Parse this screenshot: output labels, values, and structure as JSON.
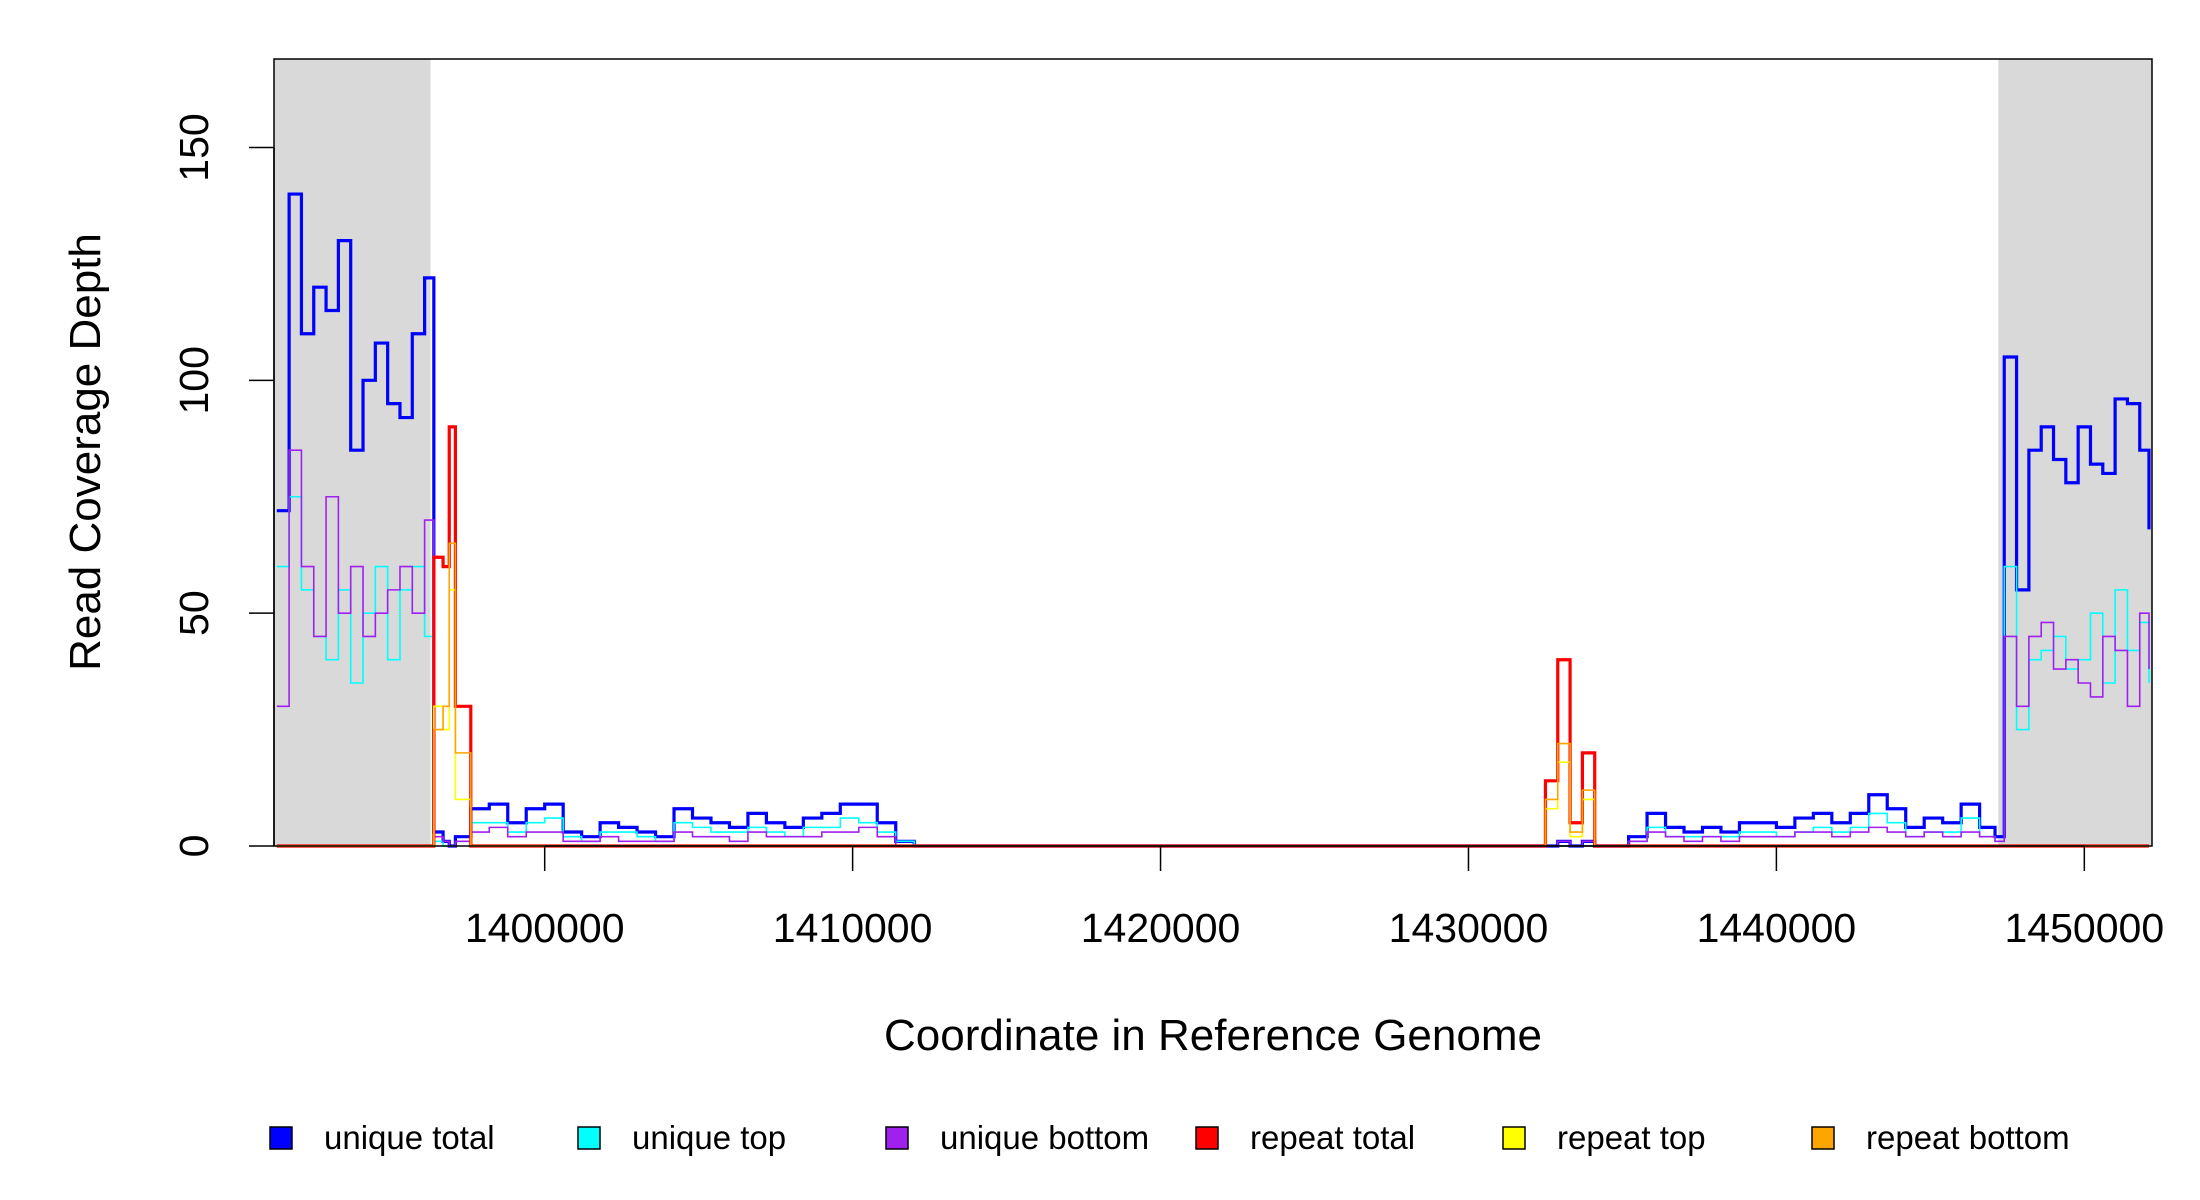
{
  "chart_data": {
    "type": "step",
    "y_label": "Read Coverage Depth",
    "x_label": "Coordinate in Reference Genome",
    "xlim": [
      1391209,
      1452198
    ],
    "ylim": [
      0,
      169
    ],
    "xticks": [
      1400000,
      1410000,
      1420000,
      1430000,
      1440000,
      1450000
    ],
    "yticks": [
      0,
      50,
      100,
      150
    ],
    "shaded_regions": [
      [
        1391209,
        1396291
      ],
      [
        1447207,
        1452198
      ]
    ],
    "shade_color": "#d9d9d9",
    "legend": "bottom",
    "x": [
      1391300,
      1391700,
      1392100,
      1392500,
      1392900,
      1393300,
      1393700,
      1394100,
      1394500,
      1394900,
      1395300,
      1395700,
      1396100,
      1396400,
      1396700,
      1396900,
      1397100,
      1397600,
      1398200,
      1398800,
      1399400,
      1400000,
      1400600,
      1401200,
      1401800,
      1402400,
      1403000,
      1403600,
      1404200,
      1404800,
      1405400,
      1406000,
      1406600,
      1407200,
      1407800,
      1408400,
      1409000,
      1409600,
      1410200,
      1410800,
      1411400,
      1412000,
      1413000,
      1432000,
      1432500,
      1432900,
      1433300,
      1433700,
      1434100,
      1434600,
      1435200,
      1435800,
      1436400,
      1437000,
      1437600,
      1438200,
      1438800,
      1439400,
      1440000,
      1440600,
      1441200,
      1441800,
      1442400,
      1443000,
      1443600,
      1444200,
      1444800,
      1445400,
      1446000,
      1446600,
      1447100,
      1447400,
      1447800,
      1448200,
      1448600,
      1449000,
      1449400,
      1449800,
      1450200,
      1450600,
      1451000,
      1451400,
      1451800,
      1452100
    ],
    "series": [
      {
        "name": "unique total",
        "color": "#0000ff",
        "width": 3.2,
        "values": [
          72,
          140,
          110,
          120,
          115,
          130,
          85,
          100,
          108,
          95,
          92,
          110,
          122,
          3,
          1,
          0,
          2,
          8,
          9,
          5,
          8,
          9,
          3,
          2,
          5,
          4,
          3,
          2,
          8,
          6,
          5,
          4,
          7,
          5,
          4,
          6,
          7,
          9,
          9,
          5,
          1,
          0,
          0,
          0,
          0,
          1,
          0,
          1,
          0,
          0,
          2,
          7,
          4,
          3,
          4,
          3,
          5,
          5,
          4,
          6,
          7,
          5,
          7,
          11,
          8,
          4,
          6,
          5,
          9,
          4,
          2,
          105,
          55,
          85,
          90,
          83,
          78,
          90,
          82,
          80,
          96,
          95,
          85,
          68
        ]
      },
      {
        "name": "unique top",
        "color": "#00ffff",
        "width": 1.6,
        "values": [
          60,
          75,
          55,
          45,
          40,
          55,
          35,
          50,
          60,
          40,
          55,
          60,
          45,
          1,
          0,
          0,
          1,
          5,
          5,
          3,
          5,
          6,
          2,
          1,
          3,
          3,
          2,
          1,
          5,
          4,
          3,
          3,
          4,
          3,
          2,
          4,
          4,
          6,
          5,
          3,
          1,
          0,
          0,
          0,
          0,
          0,
          0,
          0,
          0,
          0,
          1,
          4,
          2,
          2,
          2,
          2,
          3,
          3,
          2,
          3,
          4,
          3,
          4,
          7,
          5,
          2,
          3,
          3,
          6,
          2,
          1,
          60,
          25,
          40,
          42,
          45,
          38,
          40,
          50,
          35,
          55,
          42,
          48,
          35
        ]
      },
      {
        "name": "unique bottom",
        "color": "#a020f0",
        "width": 1.6,
        "values": [
          30,
          85,
          60,
          45,
          75,
          50,
          60,
          45,
          50,
          55,
          60,
          50,
          70,
          2,
          1,
          0,
          1,
          3,
          4,
          2,
          3,
          3,
          1,
          1,
          2,
          1,
          1,
          1,
          3,
          2,
          2,
          1,
          3,
          2,
          2,
          2,
          3,
          3,
          4,
          2,
          0,
          0,
          0,
          0,
          0,
          1,
          0,
          1,
          0,
          0,
          1,
          3,
          2,
          1,
          2,
          1,
          2,
          2,
          2,
          3,
          3,
          2,
          3,
          4,
          3,
          2,
          3,
          2,
          3,
          2,
          1,
          45,
          30,
          45,
          48,
          38,
          40,
          35,
          32,
          45,
          42,
          30,
          50,
          38
        ]
      },
      {
        "name": "repeat total",
        "color": "#ff0000",
        "width": 3.2,
        "values": [
          0,
          0,
          0,
          0,
          0,
          0,
          0,
          0,
          0,
          0,
          0,
          0,
          0,
          62,
          60,
          90,
          30,
          0,
          0,
          0,
          0,
          0,
          0,
          0,
          0,
          0,
          0,
          0,
          0,
          0,
          0,
          0,
          0,
          0,
          0,
          0,
          0,
          0,
          0,
          0,
          0,
          0,
          0,
          0,
          14,
          40,
          5,
          20,
          0,
          0,
          0,
          0,
          0,
          0,
          0,
          0,
          0,
          0,
          0,
          0,
          0,
          0,
          0,
          0,
          0,
          0,
          0,
          0,
          0,
          0,
          0,
          0,
          0,
          0,
          0,
          0,
          0,
          0,
          0,
          0,
          0,
          0,
          0,
          0
        ]
      },
      {
        "name": "repeat top",
        "color": "#ffff00",
        "width": 1.6,
        "values": [
          0,
          0,
          0,
          0,
          0,
          0,
          0,
          0,
          0,
          0,
          0,
          0,
          0,
          30,
          25,
          55,
          10,
          0,
          0,
          0,
          0,
          0,
          0,
          0,
          0,
          0,
          0,
          0,
          0,
          0,
          0,
          0,
          0,
          0,
          0,
          0,
          0,
          0,
          0,
          0,
          0,
          0,
          0,
          0,
          8,
          18,
          2,
          10,
          0,
          0,
          0,
          0,
          0,
          0,
          0,
          0,
          0,
          0,
          0,
          0,
          0,
          0,
          0,
          0,
          0,
          0,
          0,
          0,
          0,
          0,
          0,
          0,
          0,
          0,
          0,
          0,
          0,
          0,
          0,
          0,
          0,
          0,
          0,
          0
        ]
      },
      {
        "name": "repeat bottom",
        "color": "#ffa500",
        "width": 1.6,
        "values": [
          0,
          0,
          0,
          0,
          0,
          0,
          0,
          0,
          0,
          0,
          0,
          0,
          0,
          25,
          30,
          65,
          20,
          0,
          0,
          0,
          0,
          0,
          0,
          0,
          0,
          0,
          0,
          0,
          0,
          0,
          0,
          0,
          0,
          0,
          0,
          0,
          0,
          0,
          0,
          0,
          0,
          0,
          0,
          0,
          10,
          22,
          3,
          12,
          0,
          0,
          0,
          0,
          0,
          0,
          0,
          0,
          0,
          0,
          0,
          0,
          0,
          0,
          0,
          0,
          0,
          0,
          0,
          0,
          0,
          0,
          0,
          0,
          0,
          0,
          0,
          0,
          0,
          0,
          0,
          0,
          0,
          0,
          0,
          0
        ]
      }
    ]
  }
}
